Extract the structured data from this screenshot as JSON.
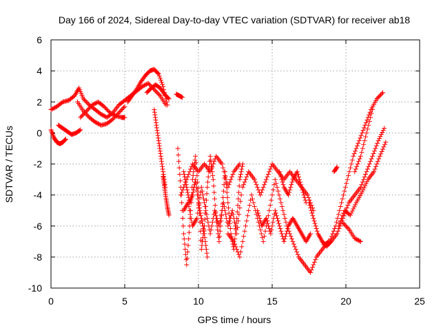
{
  "chart_data": {
    "type": "scatter",
    "title": "Day 166 of 2024, Sidereal Day-to-day VTEC variation (SDTVAR) for receiver ab18",
    "xlabel": "GPS time / hours",
    "ylabel": "SDTVAR / TECUs",
    "xlim": [
      0,
      25
    ],
    "ylim": [
      -10,
      6
    ],
    "xticks": [
      0,
      5,
      10,
      15,
      20,
      25
    ],
    "yticks": [
      -10,
      -8,
      -6,
      -4,
      -2,
      0,
      2,
      4,
      6
    ],
    "xtick_labels": [
      "0",
      "5",
      "10",
      "15",
      "20",
      "25"
    ],
    "ytick_labels": [
      "-10",
      "-8",
      "-6",
      "-4",
      "-2",
      "0",
      "2",
      "4",
      "6"
    ],
    "grid": true,
    "marker": "+",
    "color": "#ff0000",
    "series": [
      {
        "x": [
          0,
          0.4,
          0.8,
          1.2,
          1.6,
          1.9,
          2.2,
          2.6,
          3.0,
          3.4,
          3.8,
          4.2,
          4.6,
          5.0,
          5.4,
          5.8,
          6.2,
          6.6,
          7.0,
          7.4,
          7.8
        ],
        "y": [
          1.5,
          1.7,
          2.0,
          2.1,
          2.4,
          2.9,
          2.2,
          1.8,
          1.5,
          1.2,
          1.0,
          1.3,
          1.8,
          2.1,
          2.4,
          2.7,
          3.0,
          3.2,
          2.8,
          2.4,
          1.8
        ]
      },
      {
        "x": [
          0,
          0.2,
          0.4,
          0.6,
          0.8,
          1.0
        ],
        "y": [
          0.2,
          -0.3,
          -0.6,
          -0.7,
          -0.6,
          -0.4
        ]
      },
      {
        "x": [
          0.5,
          0.8,
          1.1,
          1.4,
          1.7,
          2.0
        ],
        "y": [
          0.5,
          0.3,
          0.1,
          -0.1,
          0.0,
          0.2
        ]
      },
      {
        "x": [
          1.8,
          2.2,
          2.6,
          3.0,
          3.4,
          3.8,
          4.2,
          4.6,
          5.0
        ],
        "y": [
          2.0,
          1.4,
          1.0,
          0.7,
          0.5,
          0.6,
          0.9,
          1.3,
          1.7
        ]
      },
      {
        "x": [
          2.0,
          2.4,
          2.8,
          3.2,
          3.6,
          4.0,
          4.4,
          4.8,
          5.0
        ],
        "y": [
          1.0,
          1.4,
          1.8,
          2.0,
          1.7,
          1.3,
          1.1,
          1.0,
          1.0
        ]
      },
      {
        "x": [
          5.2,
          5.5,
          5.8,
          6.1,
          6.4,
          6.7,
          7.0,
          7.3,
          7.6,
          7.9
        ],
        "y": [
          2.0,
          2.4,
          2.8,
          3.3,
          3.7,
          4.0,
          4.1,
          3.8,
          3.0,
          1.8
        ]
      },
      {
        "x": [
          6.5,
          6.8,
          7.1,
          7.4,
          7.7,
          8.0
        ],
        "y": [
          2.6,
          2.9,
          3.1,
          2.9,
          2.5,
          2.2
        ]
      },
      {
        "x": [
          7.0,
          7.15,
          7.3,
          7.45,
          7.6,
          7.75
        ],
        "y": [
          1.5,
          0.5,
          -0.5,
          -1.5,
          -2.5,
          -3.5
        ]
      },
      {
        "x": [
          7.6,
          7.7,
          7.8,
          7.9,
          8.0
        ],
        "y": [
          -2.8,
          -3.5,
          -4.2,
          -4.8,
          -5.3
        ]
      },
      {
        "x": [
          8.5,
          8.7,
          8.9
        ],
        "y": [
          2.5,
          2.4,
          2.3
        ]
      },
      {
        "x": [
          8.6,
          8.8,
          9.0,
          9.2,
          9.4,
          9.6,
          9.8,
          10.0,
          10.2,
          10.4,
          10.6,
          10.8,
          11.0,
          11.2,
          11.4,
          11.6,
          11.8,
          12.0,
          12.2,
          12.4,
          12.6,
          12.8,
          13.0
        ],
        "y": [
          -1.0,
          -3.5,
          -6.5,
          -8.5,
          -6.0,
          -3.0,
          -1.5,
          -4.0,
          -7.5,
          -6.0,
          -3.5,
          -1.5,
          -3.0,
          -5.5,
          -7.0,
          -5.0,
          -2.5,
          -4.5,
          -6.5,
          -7.5,
          -5.5,
          -3.0,
          -2.0
        ]
      },
      {
        "x": [
          8.8,
          9.2,
          9.6,
          10.0,
          10.4,
          10.8,
          11.2,
          11.6,
          12.0,
          12.4,
          12.8
        ],
        "y": [
          -4.0,
          -3.0,
          -2.0,
          -2.5,
          -2.0,
          -2.5,
          -1.5,
          -2.0,
          -3.5,
          -2.5,
          -2.0
        ]
      },
      {
        "x": [
          9.0,
          9.3,
          9.6,
          9.9,
          10.2,
          10.5,
          10.8,
          11.1,
          11.4,
          11.7,
          12.0,
          12.3,
          12.6,
          12.9
        ],
        "y": [
          -5.0,
          -4.5,
          -6.0,
          -5.5,
          -3.5,
          -5.0,
          -6.5,
          -5.0,
          -6.0,
          -4.5,
          -6.0,
          -5.0,
          -6.5,
          -4.0
        ]
      },
      {
        "x": [
          9.0,
          9.2,
          9.4,
          9.6,
          9.8,
          10.0,
          10.2,
          10.4,
          10.6
        ],
        "y": [
          -2.5,
          -3.5,
          -4.5,
          -4.0,
          -3.0,
          -4.5,
          -5.5,
          -6.5,
          -8.0
        ]
      },
      {
        "x": [
          12.0,
          12.4,
          12.8,
          13.2,
          13.6,
          14.0,
          14.4,
          14.8,
          15.2,
          15.6,
          16.0,
          16.4,
          16.8,
          17.2,
          17.6,
          18.0,
          18.4,
          18.8
        ],
        "y": [
          -6.5,
          -7.0,
          -8.0,
          -6.0,
          -4.0,
          -5.5,
          -7.0,
          -5.0,
          -3.0,
          -4.5,
          -6.0,
          -7.0,
          -8.0,
          -8.5,
          -9.0,
          -8.0,
          -7.5,
          -7.0
        ]
      },
      {
        "x": [
          13.0,
          13.4,
          13.8,
          14.2,
          14.6,
          15.0,
          15.4,
          15.8,
          16.2,
          16.6,
          17.0,
          17.4,
          17.8
        ],
        "y": [
          -3.5,
          -2.5,
          -3.0,
          -4.0,
          -3.0,
          -2.0,
          -2.5,
          -3.0,
          -2.5,
          -3.0,
          -3.5,
          -4.0,
          -5.0
        ]
      },
      {
        "x": [
          14.0,
          14.3,
          14.6,
          14.9,
          15.2,
          15.5,
          15.8,
          16.1,
          16.4,
          16.7,
          17.0,
          17.3,
          17.6
        ],
        "y": [
          -5.0,
          -6.0,
          -5.5,
          -6.5,
          -5.0,
          -6.0,
          -7.0,
          -6.0,
          -5.5,
          -6.0,
          -6.5,
          -7.0,
          -6.5
        ]
      },
      {
        "x": [
          15.5,
          15.8,
          16.1,
          16.4,
          16.7,
          17.0,
          17.3
        ],
        "y": [
          -2.5,
          -3.5,
          -4.0,
          -3.0,
          -2.5,
          -3.5,
          -4.5
        ]
      },
      {
        "x": [
          17.5,
          17.8,
          18.1,
          18.4,
          18.7,
          19.0
        ],
        "y": [
          -4.5,
          -5.5,
          -6.5,
          -7.0,
          -7.3,
          -7.0
        ]
      },
      {
        "x": [
          18.5,
          18.9,
          19.3,
          19.7,
          20.1,
          20.5,
          20.9,
          21.3,
          21.7,
          22.1,
          22.5
        ],
        "y": [
          -7.2,
          -7.0,
          -6.0,
          -4.5,
          -3.0,
          -1.5,
          -0.5,
          0.5,
          1.5,
          2.2,
          2.6
        ]
      },
      {
        "x": [
          19.0,
          19.4,
          19.8,
          20.2,
          20.6,
          21.0,
          21.4,
          21.8,
          22.2,
          22.6
        ],
        "y": [
          -7.0,
          -6.5,
          -5.5,
          -4.5,
          -4.0,
          -3.5,
          -2.5,
          -1.5,
          -0.5,
          0.3
        ]
      },
      {
        "x": [
          19.5,
          19.9,
          20.3,
          20.7,
          21.1,
          21.5,
          21.9,
          22.3,
          22.7
        ],
        "y": [
          -6.0,
          -5.0,
          -5.3,
          -4.5,
          -3.8,
          -3.0,
          -2.5,
          -1.5,
          -0.6
        ]
      },
      {
        "x": [
          20.6,
          21.0,
          21.4,
          21.8
        ],
        "y": [
          -2.5,
          -1.5,
          0.0,
          1.5
        ]
      },
      {
        "x": [
          19.2,
          19.4
        ],
        "y": [
          -2.5,
          -2.2
        ]
      },
      {
        "x": [
          19.8,
          20.2,
          20.6,
          21.0
        ],
        "y": [
          -5.8,
          -6.2,
          -6.8,
          -7.0
        ]
      }
    ]
  }
}
